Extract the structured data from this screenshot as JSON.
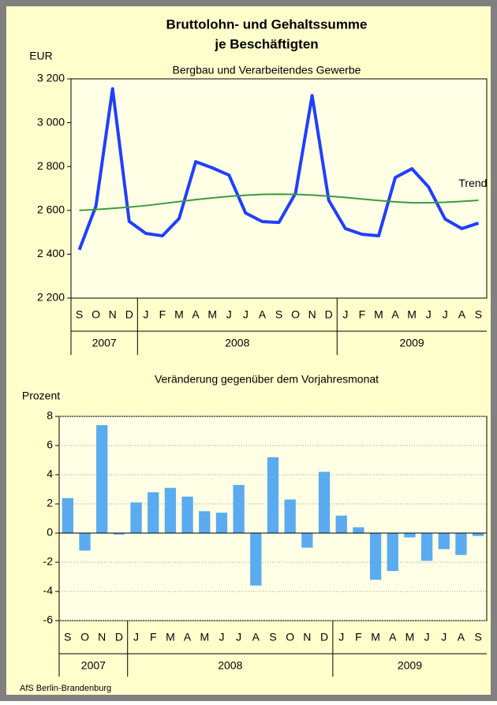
{
  "chart_data": [
    {
      "type": "line",
      "title": "Bruttolohn- und Gehaltssumme",
      "subtitle_bold": "je Beschäftigten",
      "subtitle": "Bergbau und Verarbeitendes Gewerbe",
      "y_label": "EUR",
      "categories": [
        "S",
        "O",
        "N",
        "D",
        "J",
        "F",
        "M",
        "A",
        "M",
        "J",
        "J",
        "A",
        "S",
        "O",
        "N",
        "D",
        "J",
        "F",
        "M",
        "A",
        "M",
        "J",
        "J",
        "A",
        "S"
      ],
      "years": [
        "2007",
        "2008",
        "2009"
      ],
      "series": [
        {
          "color": "#1f3fff",
          "width": 4,
          "values": [
            2420,
            2620,
            3155,
            2550,
            2495,
            2484,
            2563,
            2822,
            2794,
            2761,
            2588,
            2549,
            2545,
            2678,
            3124,
            2646,
            2517,
            2491,
            2484,
            2750,
            2790,
            2707,
            2560,
            2517,
            2542
          ]
        },
        {
          "name": "Trend",
          "color": "#3c9a3c",
          "width": 2,
          "values": [
            2600,
            2604,
            2609,
            2615,
            2622,
            2631,
            2640,
            2649,
            2657,
            2664,
            2669,
            2673,
            2674,
            2673,
            2670,
            2665,
            2659,
            2652,
            2645,
            2639,
            2635,
            2635,
            2637,
            2641,
            2646
          ]
        }
      ],
      "ylim": [
        2200,
        3200
      ],
      "yticks": [
        {
          "value": 2200,
          "label": "2 200"
        },
        {
          "value": 2400,
          "label": "2 400"
        },
        {
          "value": 2600,
          "label": "2 600"
        },
        {
          "value": 2800,
          "label": "2 800"
        },
        {
          "value": 3000,
          "label": "3 000"
        },
        {
          "value": 3200,
          "label": "3 200"
        }
      ],
      "grid": false
    },
    {
      "type": "bar",
      "subtitle": "Veränderung gegenüber dem Vorjahresmonat",
      "y_label": "Prozent",
      "categories": [
        "S",
        "O",
        "N",
        "D",
        "J",
        "F",
        "M",
        "A",
        "M",
        "J",
        "J",
        "A",
        "S",
        "O",
        "N",
        "D",
        "J",
        "F",
        "M",
        "A",
        "M",
        "J",
        "J",
        "A",
        "S"
      ],
      "years": [
        "2007",
        "2008",
        "2009"
      ],
      "values": [
        2.4,
        -1.2,
        7.4,
        -0.1,
        2.1,
        2.8,
        3.1,
        2.5,
        1.5,
        1.4,
        3.3,
        -3.6,
        5.2,
        2.3,
        -1.0,
        4.2,
        1.2,
        0.4,
        -3.2,
        -2.6,
        -0.3,
        -1.9,
        -1.1,
        -1.5,
        -0.2
      ],
      "color": "#5aabf0",
      "ylim": [
        -6,
        8
      ],
      "yticks": [
        -6,
        -4,
        -2,
        0,
        2,
        4,
        6,
        8
      ],
      "grid": true
    }
  ],
  "footer": "AfS Berlin-Brandenburg"
}
